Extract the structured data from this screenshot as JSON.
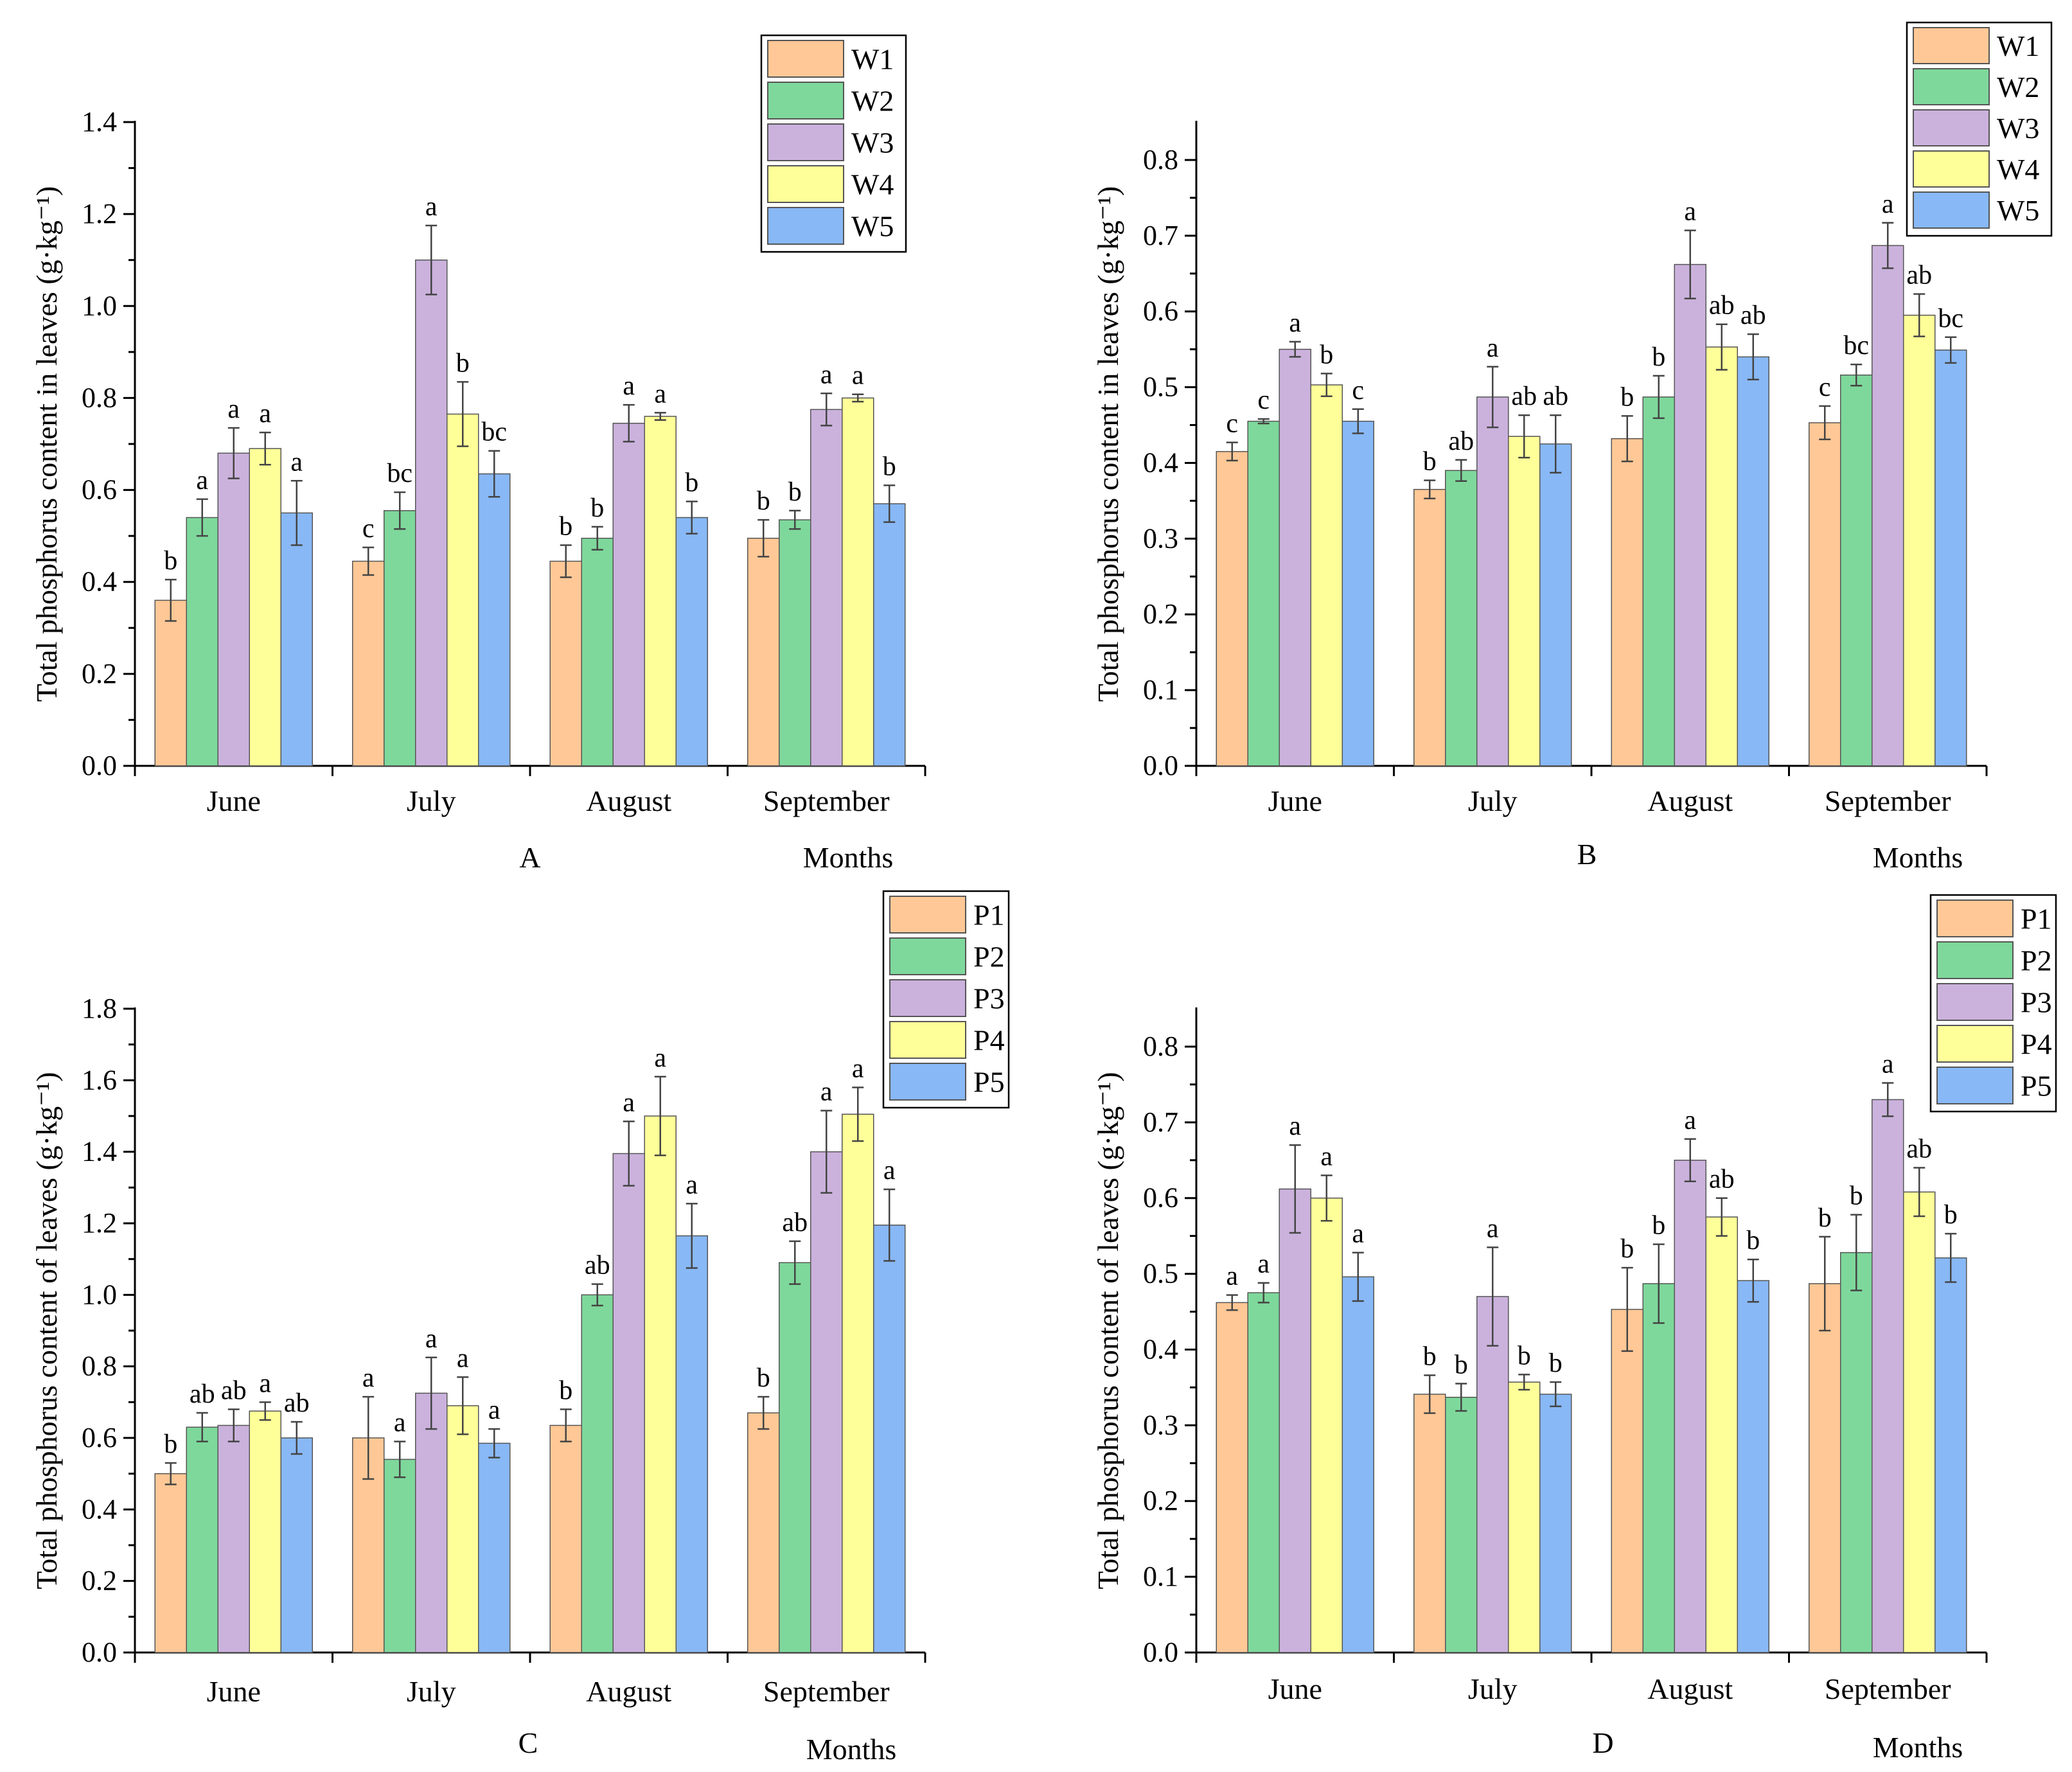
{
  "figure": {
    "panels": [
      "A",
      "B",
      "C",
      "D"
    ]
  },
  "chart_data": [
    {
      "panel": "A",
      "type": "bar",
      "categories": [
        "June",
        "July",
        "August",
        "September"
      ],
      "xlabel": "Months",
      "ylabel": "Total phosphorus content in leaves (g·kg⁻¹)",
      "ylim": [
        0,
        1.4
      ],
      "yticks": [
        "0.0",
        "0.2",
        "0.4",
        "0.6",
        "0.8",
        "1.0",
        "1.2",
        "1.4"
      ],
      "legend_position": "top-right",
      "series": [
        {
          "name": "W1",
          "values": [
            0.36,
            0.445,
            0.445,
            0.495
          ],
          "errors": [
            0.045,
            0.03,
            0.035,
            0.04
          ],
          "letters": [
            "b",
            "c",
            "b",
            "b"
          ]
        },
        {
          "name": "W2",
          "values": [
            0.54,
            0.555,
            0.495,
            0.535
          ],
          "errors": [
            0.04,
            0.04,
            0.025,
            0.02
          ],
          "letters": [
            "a",
            "bc",
            "b",
            "b"
          ]
        },
        {
          "name": "W3",
          "values": [
            0.68,
            1.1,
            0.745,
            0.775
          ],
          "errors": [
            0.055,
            0.075,
            0.04,
            0.035
          ],
          "letters": [
            "a",
            "a",
            "a",
            "a"
          ]
        },
        {
          "name": "W4",
          "values": [
            0.69,
            0.765,
            0.76,
            0.8
          ],
          "errors": [
            0.035,
            0.07,
            0.008,
            0.008
          ],
          "letters": [
            "a",
            "b",
            "a",
            "a"
          ]
        },
        {
          "name": "W5",
          "values": [
            0.55,
            0.635,
            0.54,
            0.57
          ],
          "errors": [
            0.07,
            0.05,
            0.035,
            0.04
          ],
          "letters": [
            "a",
            "bc",
            "b",
            "b"
          ]
        }
      ]
    },
    {
      "panel": "B",
      "type": "bar",
      "categories": [
        "June",
        "July",
        "August",
        "September"
      ],
      "xlabel": "Months",
      "ylabel": "Total phosphorus content in leaves (g·kg⁻¹)",
      "ylim": [
        0,
        0.85
      ],
      "yticks": [
        "0.0",
        "0.1",
        "0.2",
        "0.3",
        "0.4",
        "0.5",
        "0.6",
        "0.7",
        "0.8"
      ],
      "legend_position": "top-right",
      "series": [
        {
          "name": "W1",
          "values": [
            0.415,
            0.365,
            0.432,
            0.453
          ],
          "errors": [
            0.012,
            0.012,
            0.03,
            0.022
          ],
          "letters": [
            "c",
            "b",
            "b",
            "c"
          ]
        },
        {
          "name": "W2",
          "values": [
            0.455,
            0.39,
            0.487,
            0.516
          ],
          "errors": [
            0.003,
            0.014,
            0.028,
            0.014
          ],
          "letters": [
            "c",
            "ab",
            "b",
            "bc"
          ]
        },
        {
          "name": "W3",
          "values": [
            0.55,
            0.487,
            0.662,
            0.687
          ],
          "errors": [
            0.01,
            0.04,
            0.045,
            0.03
          ],
          "letters": [
            "a",
            "a",
            "a",
            "a"
          ]
        },
        {
          "name": "W4",
          "values": [
            0.503,
            0.435,
            0.553,
            0.595
          ],
          "errors": [
            0.015,
            0.028,
            0.03,
            0.028
          ],
          "letters": [
            "b",
            "ab",
            "ab",
            "ab"
          ]
        },
        {
          "name": "W5",
          "values": [
            0.455,
            0.425,
            0.54,
            0.549
          ],
          "errors": [
            0.016,
            0.038,
            0.03,
            0.017
          ],
          "letters": [
            "c",
            "ab",
            "ab",
            "bc"
          ]
        }
      ]
    },
    {
      "panel": "C",
      "type": "bar",
      "categories": [
        "June",
        "July",
        "August",
        "September"
      ],
      "xlabel": "Months",
      "ylabel": "Total phosphorus content of leaves (g·kg⁻¹)",
      "ylim": [
        0,
        1.8
      ],
      "yticks": [
        "0.0",
        "0.2",
        "0.4",
        "0.6",
        "0.8",
        "1.0",
        "1.2",
        "1.4",
        "1.6",
        "1.8"
      ],
      "legend_position": "top-right",
      "series": [
        {
          "name": "P1",
          "values": [
            0.5,
            0.6,
            0.635,
            0.67
          ],
          "errors": [
            0.03,
            0.115,
            0.045,
            0.045
          ],
          "letters": [
            "b",
            "a",
            "b",
            "b"
          ]
        },
        {
          "name": "P2",
          "values": [
            0.63,
            0.54,
            1.0,
            1.09
          ],
          "errors": [
            0.04,
            0.05,
            0.03,
            0.06
          ],
          "letters": [
            "ab",
            "a",
            "ab",
            "ab"
          ]
        },
        {
          "name": "P3",
          "values": [
            0.635,
            0.725,
            1.395,
            1.4
          ],
          "errors": [
            0.045,
            0.1,
            0.09,
            0.115
          ],
          "letters": [
            "ab",
            "a",
            "a",
            "a"
          ]
        },
        {
          "name": "P4",
          "values": [
            0.675,
            0.69,
            1.5,
            1.505
          ],
          "errors": [
            0.025,
            0.08,
            0.11,
            0.075
          ],
          "letters": [
            "a",
            "a",
            "a",
            "a"
          ]
        },
        {
          "name": "P5",
          "values": [
            0.6,
            0.585,
            1.165,
            1.195
          ],
          "errors": [
            0.045,
            0.04,
            0.09,
            0.1
          ],
          "letters": [
            "ab",
            "a",
            "a",
            "a"
          ]
        }
      ]
    },
    {
      "panel": "D",
      "type": "bar",
      "categories": [
        "June",
        "July",
        "August",
        "September"
      ],
      "xlabel": "Months",
      "ylabel": "Total phosphorus content of leaves (g·kg⁻¹)",
      "ylim": [
        0,
        0.85
      ],
      "yticks": [
        "0.0",
        "0.1",
        "0.2",
        "0.3",
        "0.4",
        "0.5",
        "0.6",
        "0.7",
        "0.8"
      ],
      "legend_position": "top-right",
      "series": [
        {
          "name": "P1",
          "values": [
            0.462,
            0.341,
            0.453,
            0.487
          ],
          "errors": [
            0.01,
            0.025,
            0.055,
            0.062
          ],
          "letters": [
            "a",
            "b",
            "b",
            "b"
          ]
        },
        {
          "name": "P2",
          "values": [
            0.475,
            0.337,
            0.487,
            0.528
          ],
          "errors": [
            0.013,
            0.018,
            0.052,
            0.05
          ],
          "letters": [
            "a",
            "b",
            "b",
            "b"
          ]
        },
        {
          "name": "P3",
          "values": [
            0.612,
            0.47,
            0.65,
            0.73
          ],
          "errors": [
            0.058,
            0.065,
            0.028,
            0.022
          ],
          "letters": [
            "a",
            "a",
            "a",
            "a"
          ]
        },
        {
          "name": "P4",
          "values": [
            0.6,
            0.357,
            0.575,
            0.608
          ],
          "errors": [
            0.03,
            0.01,
            0.025,
            0.032
          ],
          "letters": [
            "a",
            "b",
            "ab",
            "ab"
          ]
        },
        {
          "name": "P5",
          "values": [
            0.496,
            0.341,
            0.491,
            0.521
          ],
          "errors": [
            0.032,
            0.016,
            0.028,
            0.032
          ],
          "letters": [
            "a",
            "b",
            "b",
            "b"
          ]
        }
      ]
    }
  ],
  "colors": {
    "series": [
      "#FFC896",
      "#7ED89B",
      "#CBB2DD",
      "#FFFF99",
      "#88B8F5"
    ],
    "axis": "#000000"
  }
}
